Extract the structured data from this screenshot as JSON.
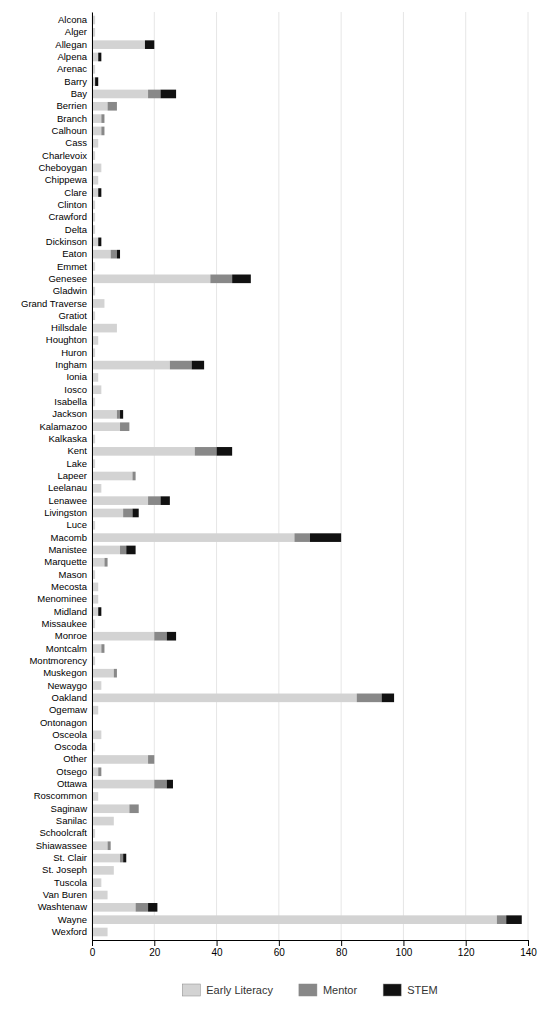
{
  "chart_data": {
    "type": "bar",
    "orientation": "horizontal",
    "stacked": true,
    "categories": [
      "Alcona",
      "Alger",
      "Allegan",
      "Alpena",
      "Arenac",
      "Barry",
      "Bay",
      "Berrien",
      "Branch",
      "Calhoun",
      "Cass",
      "Charlevoix",
      "Cheboygan",
      "Chippewa",
      "Clare",
      "Clinton",
      "Crawford",
      "Delta",
      "Dickinson",
      "Eaton",
      "Emmet",
      "Genesee",
      "Gladwin",
      "Grand Traverse",
      "Gratiot",
      "Hillsdale",
      "Houghton",
      "Huron",
      "Ingham",
      "Ionia",
      "Iosco",
      "Isabella",
      "Jackson",
      "Kalamazoo",
      "Kalkaska",
      "Kent",
      "Lake",
      "Lapeer",
      "Leelanau",
      "Lenawee",
      "Livingston",
      "Luce",
      "Macomb",
      "Manistee",
      "Marquette",
      "Mason",
      "Mecosta",
      "Menominee",
      "Midland",
      "Missaukee",
      "Monroe",
      "Montcalm",
      "Montmorency",
      "Muskegon",
      "Newaygo",
      "Oakland",
      "Ogemaw",
      "Ontonagon",
      "Osceola",
      "Oscoda",
      "Other",
      "Otsego",
      "Ottawa",
      "Roscommon",
      "Saginaw",
      "Sanilac",
      "Schoolcraft",
      "Shiawassee",
      "St. Clair",
      "St. Joseph",
      "Tuscola",
      "Van Buren",
      "Washtenaw",
      "Wayne",
      "Wexford"
    ],
    "series": [
      {
        "name": "Early Literacy",
        "color": "#d3d3d3",
        "values": [
          1,
          1,
          17,
          2,
          1,
          1,
          18,
          5,
          3,
          3,
          2,
          1,
          3,
          2,
          2,
          1,
          1,
          1,
          2,
          6,
          1,
          38,
          1,
          4,
          1,
          8,
          2,
          1,
          25,
          2,
          3,
          1,
          8,
          9,
          1,
          33,
          1,
          13,
          3,
          18,
          10,
          1,
          65,
          9,
          4,
          1,
          2,
          2,
          2,
          1,
          20,
          3,
          1,
          7,
          3,
          85,
          2,
          0,
          3,
          1,
          18,
          2,
          20,
          2,
          12,
          7,
          1,
          5,
          9,
          7,
          3,
          5,
          14,
          130,
          5
        ]
      },
      {
        "name": "Mentor",
        "color": "#888888",
        "values": [
          0,
          0,
          0,
          0,
          0,
          0,
          4,
          3,
          1,
          1,
          0,
          0,
          0,
          0,
          0,
          0,
          0,
          0,
          0,
          2,
          0,
          7,
          0,
          0,
          0,
          0,
          0,
          0,
          7,
          0,
          0,
          0,
          1,
          3,
          0,
          7,
          0,
          1,
          0,
          4,
          3,
          0,
          5,
          2,
          1,
          0,
          0,
          0,
          0,
          0,
          4,
          1,
          0,
          1,
          0,
          8,
          0,
          0,
          0,
          0,
          2,
          1,
          4,
          0,
          3,
          0,
          0,
          1,
          1,
          0,
          0,
          0,
          4,
          3,
          0
        ]
      },
      {
        "name": "STEM",
        "color": "#111111",
        "values": [
          0,
          0,
          3,
          1,
          0,
          1,
          5,
          0,
          0,
          0,
          0,
          0,
          0,
          0,
          1,
          0,
          0,
          0,
          1,
          1,
          0,
          6,
          0,
          0,
          0,
          0,
          0,
          0,
          4,
          0,
          0,
          0,
          1,
          0,
          0,
          5,
          0,
          0,
          0,
          3,
          2,
          0,
          10,
          3,
          0,
          0,
          0,
          0,
          1,
          0,
          3,
          0,
          0,
          0,
          0,
          4,
          0,
          0,
          0,
          0,
          0,
          0,
          2,
          0,
          0,
          0,
          0,
          0,
          1,
          0,
          0,
          0,
          3,
          5,
          0
        ]
      }
    ],
    "xlim": [
      0,
      140
    ],
    "xticks": [
      0,
      20,
      40,
      60,
      80,
      100,
      120,
      140
    ],
    "grid": true,
    "legend": "bottom"
  }
}
